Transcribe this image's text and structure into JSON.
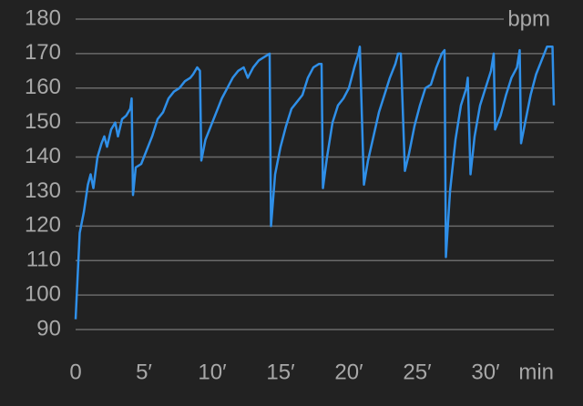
{
  "chart_data": {
    "type": "line",
    "y_label": "bpm",
    "x_label": "min",
    "color": "#2f8fe8",
    "x": [
      0,
      0.3,
      0.6,
      0.9,
      1.1,
      1.3,
      1.6,
      1.9,
      2.1,
      2.3,
      2.6,
      2.9,
      3.1,
      3.4,
      3.7,
      4.0,
      4.1,
      4.2,
      4.4,
      4.8,
      5.2,
      5.6,
      6.0,
      6.4,
      6.8,
      7.2,
      7.6,
      8.0,
      8.4,
      8.6,
      8.9,
      9.1,
      9.2,
      9.5,
      9.9,
      10.3,
      10.7,
      11.1,
      11.5,
      11.9,
      12.3,
      12.6,
      13.0,
      13.4,
      13.8,
      14.2,
      14.3,
      14.6,
      15.0,
      15.4,
      15.8,
      16.2,
      16.6,
      17.0,
      17.4,
      17.8,
      18.0,
      18.1,
      18.4,
      18.8,
      19.2,
      19.6,
      20.0,
      20.4,
      20.7,
      20.8,
      21.1,
      21.4,
      21.8,
      22.2,
      22.6,
      23.0,
      23.4,
      23.6,
      23.8,
      24.1,
      24.4,
      24.8,
      25.2,
      25.6,
      26.0,
      26.4,
      26.8,
      27.0,
      27.1,
      27.4,
      27.8,
      28.2,
      28.6,
      28.7,
      28.9,
      29.2,
      29.6,
      30.0,
      30.4,
      30.6,
      30.7,
      31.1,
      31.5,
      31.9,
      32.3,
      32.5,
      32.6,
      32.9,
      33.3,
      33.7,
      34.1,
      34.5,
      34.9,
      35.0
    ],
    "values": [
      93,
      118,
      124,
      132,
      135,
      131,
      140,
      144,
      146,
      143,
      148,
      150,
      146,
      151,
      152,
      154,
      157,
      129,
      137,
      138,
      142,
      146,
      151,
      153,
      157,
      159,
      160,
      162,
      163,
      164,
      166,
      165,
      139,
      145,
      149,
      153,
      157,
      160,
      163,
      165,
      166,
      163,
      166,
      168,
      169,
      170,
      120,
      135,
      143,
      149,
      154,
      156,
      158,
      163,
      166,
      167,
      167,
      131,
      140,
      150,
      155,
      157,
      160,
      166,
      170,
      172,
      132,
      139,
      146,
      153,
      158,
      163,
      167,
      170,
      170,
      136,
      141,
      149,
      155,
      160,
      161,
      166,
      170,
      171,
      111,
      130,
      145,
      155,
      160,
      163,
      135,
      146,
      155,
      160,
      165,
      170,
      148,
      152,
      158,
      163,
      166,
      171,
      144,
      150,
      158,
      164,
      168,
      172,
      172,
      155
    ],
    "xlim": [
      0,
      35
    ],
    "ylim": [
      90,
      180
    ],
    "xticks": [
      0,
      {
        "value": 5,
        "label": "5′"
      },
      {
        "value": 10,
        "label": "10′"
      },
      {
        "value": 15,
        "label": "15′"
      },
      {
        "value": 20,
        "label": "20′"
      },
      {
        "value": 25,
        "label": "25′"
      },
      {
        "value": 30,
        "label": "30′"
      }
    ],
    "yticks": [
      90,
      100,
      110,
      120,
      130,
      140,
      150,
      160,
      170,
      180
    ],
    "grid": true
  }
}
